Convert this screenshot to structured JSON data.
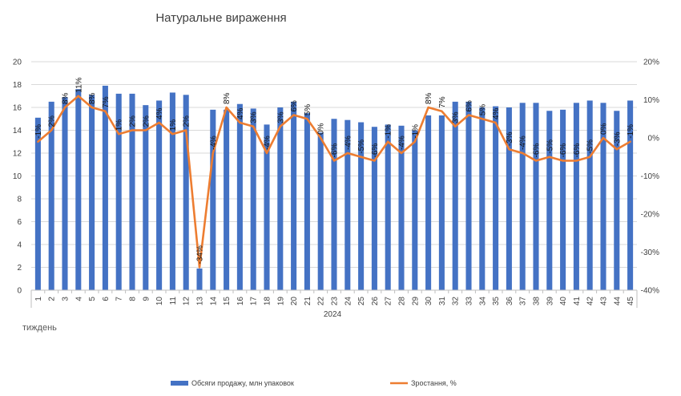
{
  "chart_data": {
    "type": "bar+line",
    "title": "Натуральне вираження",
    "xlabel": "тиждень",
    "group_label": "2024",
    "categories": [
      "1",
      "2",
      "3",
      "4",
      "5",
      "6",
      "7",
      "8",
      "9",
      "10",
      "11",
      "12",
      "13",
      "14",
      "15",
      "16",
      "17",
      "18",
      "19",
      "20",
      "21",
      "22",
      "23",
      "24",
      "25",
      "26",
      "27",
      "28",
      "29",
      "30",
      "31",
      "32",
      "33",
      "34",
      "35",
      "36",
      "37",
      "38",
      "39",
      "40",
      "41",
      "42",
      "43",
      "44",
      "45"
    ],
    "y_left": {
      "ticks": [
        "0",
        "2",
        "4",
        "6",
        "8",
        "10",
        "12",
        "14",
        "16",
        "18",
        "20"
      ],
      "ylim": [
        0,
        20
      ]
    },
    "y_right": {
      "ticks": [
        "-40%",
        "-30%",
        "-20%",
        "-10%",
        "0%",
        "10%",
        "20%"
      ],
      "ylim": [
        -40,
        20
      ]
    },
    "series": [
      {
        "name": "Обсяги продажу, млн упаковок",
        "type": "bar",
        "axis": "left",
        "color": "#4472C4",
        "values": [
          15.1,
          16.5,
          16.9,
          17.6,
          17.1,
          17.9,
          17.2,
          17.2,
          16.2,
          16.6,
          17.3,
          17.1,
          1.9,
          15.8,
          15.8,
          16.3,
          15.9,
          14.5,
          16.0,
          16.5,
          15.5,
          13.8,
          15.0,
          14.9,
          14.7,
          14.3,
          14.5,
          14.4,
          14.0,
          15.3,
          15.3,
          16.5,
          16.5,
          16.0,
          16.1,
          16.0,
          16.4,
          16.4,
          15.7,
          15.8,
          16.4,
          16.6,
          16.4,
          15.7,
          16.6
        ]
      },
      {
        "name": "Зростання, %",
        "type": "line",
        "axis": "right",
        "color": "#ED7D31",
        "values": [
          -1,
          2,
          8,
          11,
          8,
          7,
          1,
          2,
          2,
          4,
          1,
          2,
          -34,
          -4,
          8,
          4,
          3,
          -4,
          3,
          6,
          5,
          0,
          -6,
          -4,
          -5,
          -6,
          -1,
          -4,
          -1,
          8,
          7,
          3,
          6,
          5,
          4,
          -3,
          -4,
          -6,
          -5,
          -6,
          -6,
          -5,
          0,
          -3,
          -1
        ],
        "labels": [
          "-1%",
          "2%",
          "8%",
          "11%",
          "8%",
          "7%",
          "1%",
          "2%",
          "2%",
          "4%",
          "1%",
          "2%",
          "-34%",
          "-4%",
          "8%",
          "4%",
          "3%",
          "-4%",
          "3%",
          "6%",
          "5%",
          "0%",
          "-6%",
          "-4%",
          "-5%",
          "-6%",
          "-1%",
          "-4%",
          "-1%",
          "8%",
          "7%",
          "3%",
          "6%",
          "5%",
          "4%",
          "-3%",
          "-4%",
          "-6%",
          "-5%",
          "-6%",
          "-6%",
          "-5%",
          "0%",
          "-3%",
          "-1%"
        ]
      }
    ],
    "legend": "bottom",
    "grid": true
  }
}
